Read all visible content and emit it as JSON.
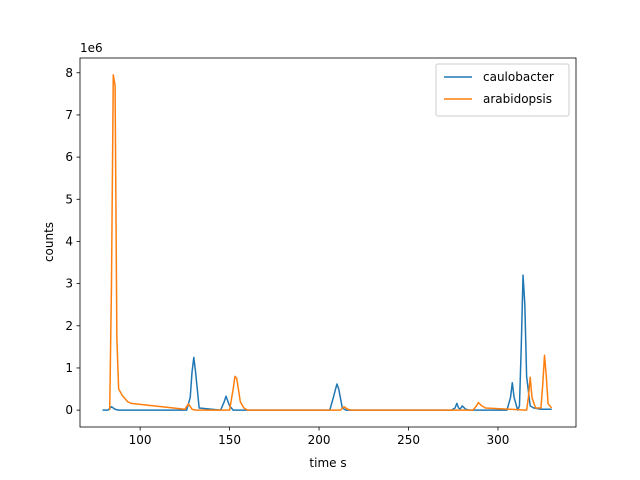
{
  "chart_data": {
    "type": "line",
    "xlabel": "time s",
    "ylabel": "counts",
    "y_offset_label": "1e6",
    "xlim": [
      66.4,
      343.6
    ],
    "xticks": [
      100,
      150,
      200,
      250,
      300
    ],
    "ylim": [
      -0.4,
      8.35
    ],
    "yticks": [
      0,
      1,
      2,
      3,
      4,
      5,
      6,
      7,
      8
    ],
    "legend": "upper right",
    "grid": false,
    "series": [
      {
        "name": "caulobacter",
        "color": "#1f77b4",
        "x": [
          79,
          82,
          84,
          86,
          88,
          126,
          128,
          129,
          130,
          131,
          133,
          145,
          147,
          148,
          150,
          152,
          206,
          208,
          210,
          211,
          213,
          215,
          274,
          276,
          277,
          278,
          279,
          280,
          282,
          284,
          305,
          307,
          308,
          309,
          311,
          312,
          313,
          314,
          315,
          316,
          318,
          320,
          324,
          330
        ],
        "values": [
          0,
          0,
          0.08,
          0.02,
          0,
          0,
          0.3,
          0.9,
          1.25,
          0.9,
          0.05,
          0,
          0.2,
          0.33,
          0.1,
          0,
          0,
          0.3,
          0.62,
          0.5,
          0.05,
          0,
          0,
          0.05,
          0.16,
          0.05,
          0.03,
          0.1,
          0.02,
          0,
          0,
          0.3,
          0.65,
          0.3,
          0,
          0.1,
          1.5,
          3.2,
          2.5,
          0.8,
          0.1,
          0.05,
          0.02,
          0.02
        ]
      },
      {
        "name": "arabidopsis",
        "color": "#ff7f0e",
        "x": [
          83,
          84,
          85,
          86,
          87,
          88,
          90,
          93,
          95,
          125,
          127,
          129,
          131,
          150,
          152,
          153,
          154,
          156,
          158,
          160,
          212,
          214,
          216,
          218,
          286,
          288,
          289,
          291,
          293,
          316,
          317,
          318,
          319,
          321,
          324,
          325,
          326,
          327,
          328,
          330
        ],
        "values": [
          0,
          3,
          7.95,
          7.7,
          1.7,
          0.5,
          0.35,
          0.2,
          0.16,
          0.02,
          0.15,
          0.02,
          0,
          0,
          0.5,
          0.8,
          0.75,
          0.2,
          0.05,
          0,
          0,
          0.08,
          0.02,
          0,
          0,
          0.1,
          0.18,
          0.1,
          0.05,
          0,
          0.3,
          0.78,
          0.3,
          0.05,
          0.05,
          0.6,
          1.3,
          0.8,
          0.15,
          0.05
        ]
      }
    ]
  }
}
